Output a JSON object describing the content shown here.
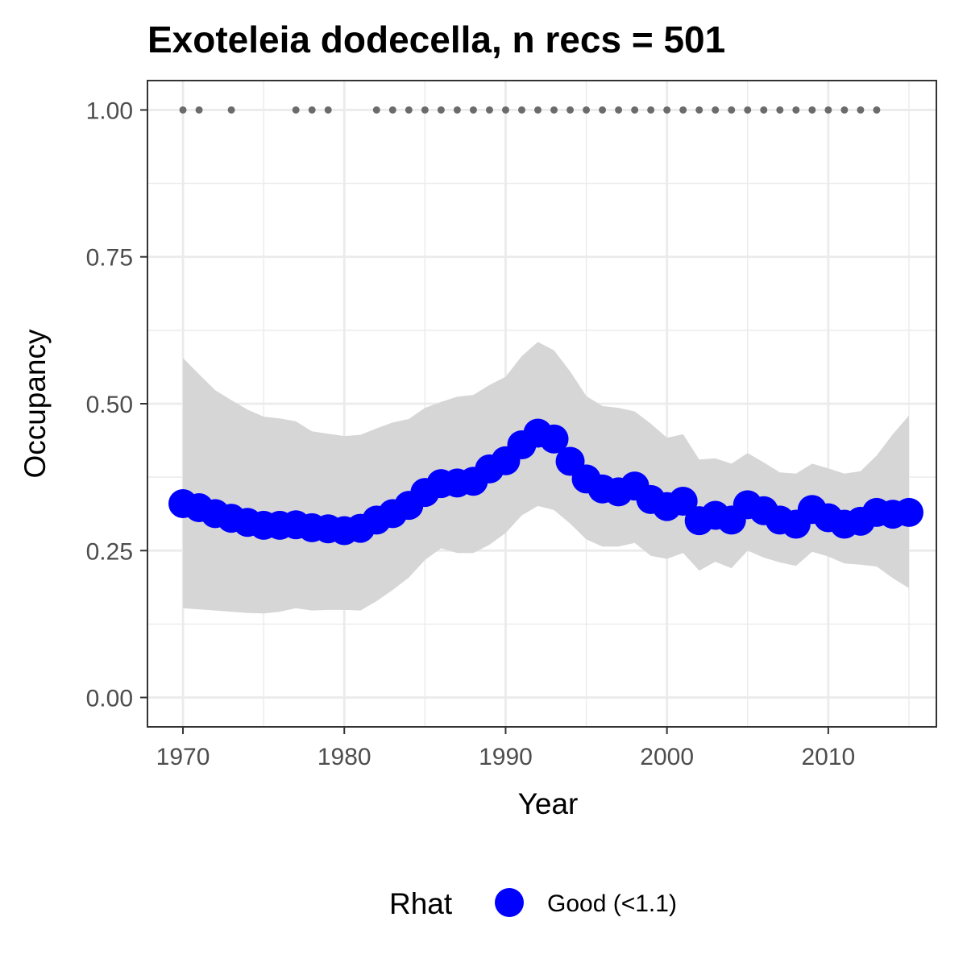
{
  "chart_data": {
    "type": "line",
    "title": "Exoteleia dodecella, n recs = 501",
    "xlabel": "Year",
    "ylabel": "Occupancy",
    "xlim": [
      1967.8,
      2016.7
    ],
    "ylim": [
      -0.05,
      1.05
    ],
    "x_ticks": [
      1970,
      1980,
      1990,
      2000,
      2010
    ],
    "x_tick_labels": [
      "1970",
      "1980",
      "1990",
      "2000",
      "2010"
    ],
    "y_ticks": [
      0,
      0.25,
      0.5,
      0.75,
      1.0
    ],
    "y_tick_labels": [
      "0.00",
      "0.25",
      "0.50",
      "0.75",
      "1.00"
    ],
    "grid": true,
    "x": [
      1970,
      1971,
      1972,
      1973,
      1974,
      1975,
      1976,
      1977,
      1978,
      1979,
      1980,
      1981,
      1982,
      1983,
      1984,
      1985,
      1986,
      1987,
      1988,
      1989,
      1990,
      1991,
      1992,
      1993,
      1994,
      1995,
      1996,
      1997,
      1998,
      1999,
      2000,
      2001,
      2002,
      2003,
      2004,
      2005,
      2006,
      2007,
      2008,
      2009,
      2010,
      2011,
      2012,
      2013,
      2014,
      2015
    ],
    "series": [
      {
        "name": "Good (<1.1)",
        "color": "#0000ff",
        "values": [
          0.33,
          0.323,
          0.313,
          0.305,
          0.298,
          0.293,
          0.293,
          0.294,
          0.289,
          0.287,
          0.284,
          0.288,
          0.302,
          0.313,
          0.327,
          0.349,
          0.364,
          0.365,
          0.368,
          0.389,
          0.403,
          0.43,
          0.45,
          0.44,
          0.402,
          0.372,
          0.355,
          0.35,
          0.36,
          0.337,
          0.325,
          0.334,
          0.301,
          0.31,
          0.302,
          0.328,
          0.318,
          0.302,
          0.295,
          0.32,
          0.306,
          0.295,
          0.3,
          0.315,
          0.312,
          0.315
        ]
      }
    ],
    "ribbon": {
      "color": "#d6d6d6",
      "lower": [
        0.152,
        0.15,
        0.148,
        0.146,
        0.144,
        0.143,
        0.146,
        0.152,
        0.148,
        0.149,
        0.149,
        0.148,
        0.164,
        0.183,
        0.204,
        0.234,
        0.254,
        0.246,
        0.246,
        0.26,
        0.28,
        0.31,
        0.326,
        0.319,
        0.296,
        0.269,
        0.257,
        0.257,
        0.263,
        0.241,
        0.236,
        0.246,
        0.216,
        0.231,
        0.22,
        0.25,
        0.238,
        0.23,
        0.224,
        0.248,
        0.24,
        0.228,
        0.226,
        0.223,
        0.203,
        0.186
      ],
      "upper": [
        0.578,
        0.55,
        0.523,
        0.506,
        0.49,
        0.478,
        0.475,
        0.47,
        0.453,
        0.449,
        0.445,
        0.447,
        0.458,
        0.468,
        0.474,
        0.493,
        0.503,
        0.512,
        0.515,
        0.532,
        0.546,
        0.581,
        0.605,
        0.591,
        0.555,
        0.513,
        0.496,
        0.493,
        0.487,
        0.466,
        0.442,
        0.448,
        0.405,
        0.407,
        0.398,
        0.416,
        0.4,
        0.383,
        0.381,
        0.398,
        0.39,
        0.381,
        0.385,
        0.412,
        0.448,
        0.48
      ]
    },
    "record_years": [
      1970,
      1971,
      1973,
      1977,
      1978,
      1979,
      1982,
      1983,
      1984,
      1985,
      1986,
      1987,
      1988,
      1989,
      1990,
      1991,
      1992,
      1993,
      1994,
      1995,
      1996,
      1997,
      1998,
      1999,
      2000,
      2001,
      2002,
      2003,
      2004,
      2005,
      2006,
      2007,
      2008,
      2009,
      2010,
      2011,
      2012,
      2013
    ],
    "record_value": 1.0,
    "record_color": "#6b6b6b",
    "legend": {
      "title": "Rhat",
      "position": "bottom",
      "items": [
        {
          "label": "Good (<1.1)",
          "color": "#0000ff"
        }
      ]
    }
  }
}
